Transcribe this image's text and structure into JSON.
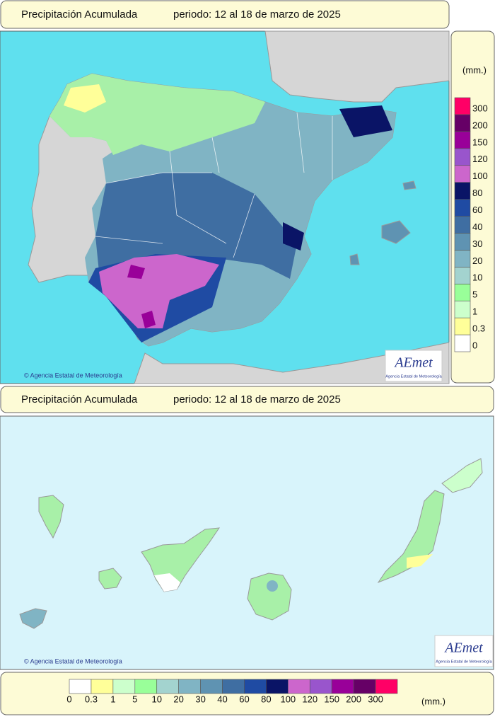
{
  "header_top": {
    "title": "Precipitación Acumulada",
    "period": "periodo: 12 al 18 de marzo de 2025"
  },
  "header_bottom": {
    "title": "Precipitación Acumulada",
    "period": "periodo: 12 al 18 de marzo de 2025"
  },
  "legend": {
    "unit": "(mm.)",
    "levels": [
      {
        "label": "0",
        "color": "#ffffff"
      },
      {
        "label": "0.3",
        "color": "#ffff99"
      },
      {
        "label": "1",
        "color": "#ccffcc"
      },
      {
        "label": "5",
        "color": "#99ff99"
      },
      {
        "label": "10",
        "color": "#a3d3cf"
      },
      {
        "label": "20",
        "color": "#80b4c4"
      },
      {
        "label": "30",
        "color": "#5f93b2"
      },
      {
        "label": "40",
        "color": "#3f6ea2"
      },
      {
        "label": "60",
        "color": "#1f4ba3"
      },
      {
        "label": "80",
        "color": "#0a1466"
      },
      {
        "label": "100",
        "color": "#cc66cc"
      },
      {
        "label": "120",
        "color": "#9955cc"
      },
      {
        "label": "150",
        "color": "#990099"
      },
      {
        "label": "200",
        "color": "#660066"
      },
      {
        "label": "300",
        "color": "#ff0066"
      }
    ]
  },
  "credits": {
    "top": "© Agencia Estatal de Meteorología",
    "bottom": "© Agencia Estatal de Meteorología"
  },
  "logo": {
    "name": "AEmet",
    "subtitle": "Agencia Estatal de Meteorología"
  }
}
